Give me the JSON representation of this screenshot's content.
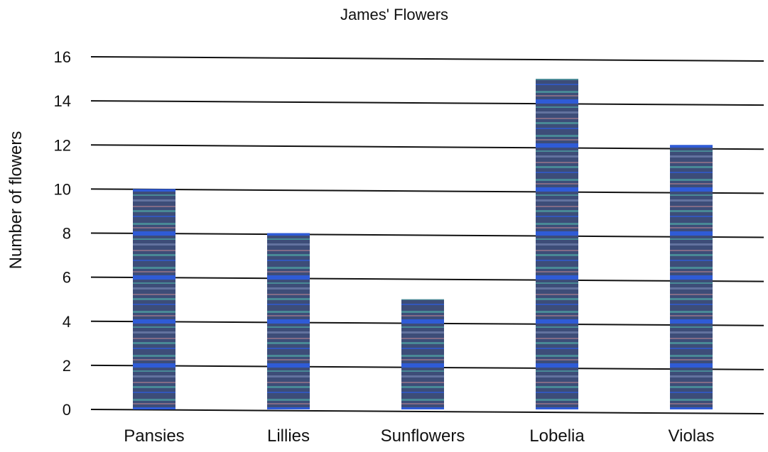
{
  "chart_data": {
    "type": "bar",
    "title": "James' Flowers",
    "xlabel": "",
    "ylabel": "Number of flowers",
    "categories": [
      "Pansies",
      "Lillies",
      "Sunflowers",
      "Lobelia",
      "Violas"
    ],
    "values": [
      10,
      8,
      5,
      15,
      12
    ],
    "ylim": [
      0,
      16
    ],
    "yticks": [
      0,
      2,
      4,
      6,
      8,
      10,
      12,
      14,
      16
    ],
    "grid": true,
    "legend": "none",
    "colors": {
      "bar_base": "#3d4d78",
      "bar_stripe_blue": "#2f5bd6",
      "bar_stripe_teal": "#4fa3a3",
      "bar_stripe_pink": "#b08090",
      "gridline": "#111111"
    }
  }
}
